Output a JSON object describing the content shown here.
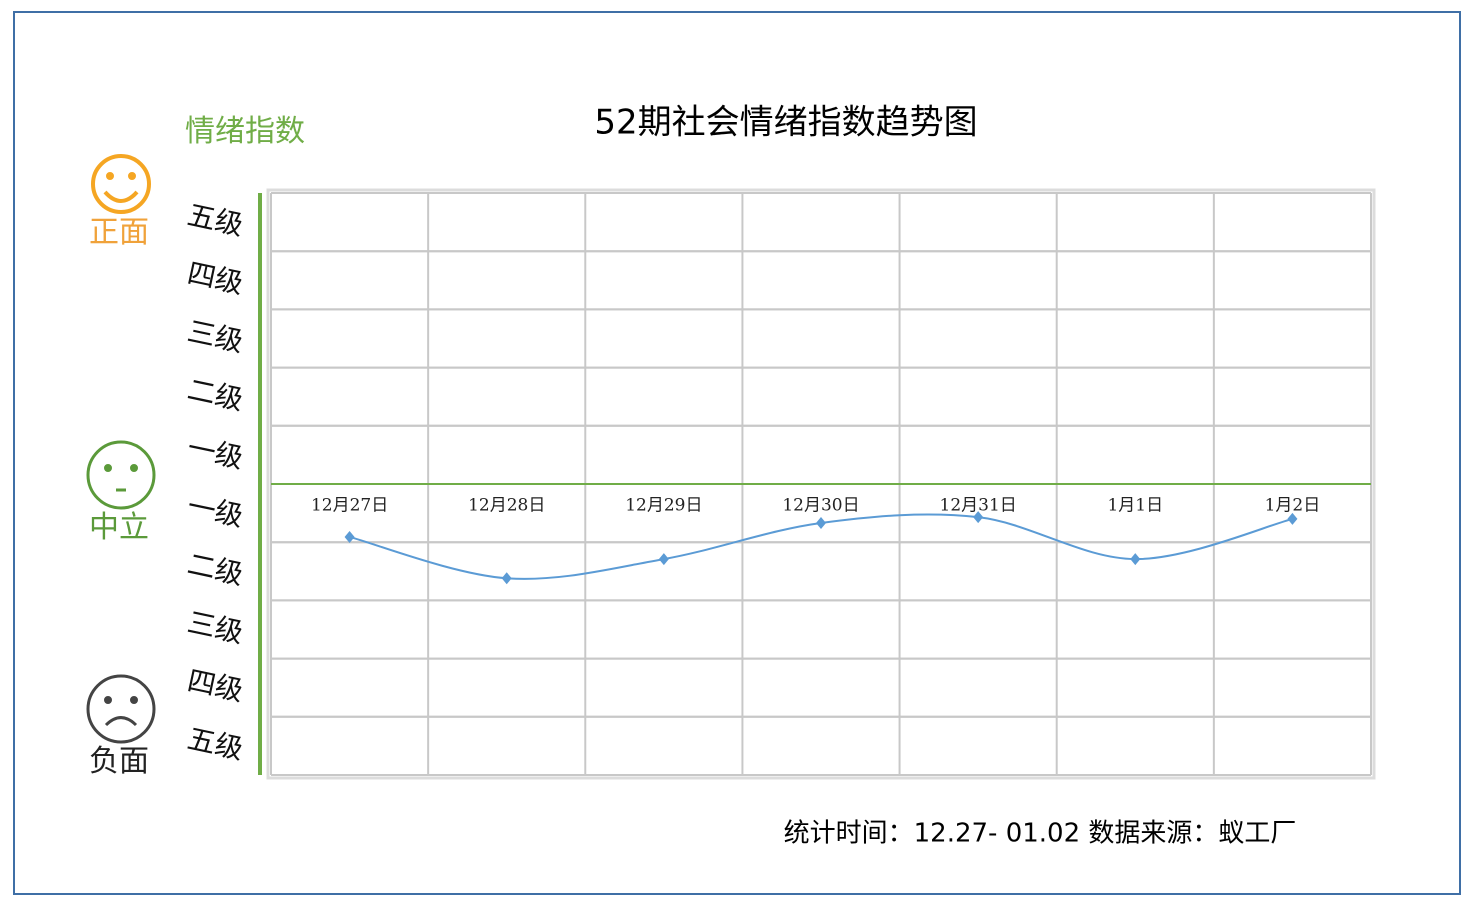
{
  "chart_data": {
    "type": "line",
    "title": "52期社会情绪指数趋势图",
    "y_label": "情绪指数",
    "groups": [
      "正面",
      "中立",
      "负面"
    ],
    "categories": [
      "12月27日",
      "12月28日",
      "12月29日",
      "12月30日",
      "12月31日",
      "1月1日",
      "1月2日"
    ],
    "values": [
      -0.91,
      -1.62,
      -1.29,
      -0.67,
      -0.57,
      -1.29,
      -0.6
    ],
    "color": "#5b9bd5",
    "axis_color": "#70ad47",
    "ylim": [
      -5,
      5
    ],
    "yticks": [
      {
        "value": 4.5,
        "label": "五级"
      },
      {
        "value": 3.5,
        "label": "四级"
      },
      {
        "value": 2.5,
        "label": "三级"
      },
      {
        "value": 1.5,
        "label": "二级"
      },
      {
        "value": 0.5,
        "label": "一级"
      },
      {
        "value": -0.5,
        "label": "一级"
      },
      {
        "value": -1.5,
        "label": "二级"
      },
      {
        "value": -2.5,
        "label": "三级"
      },
      {
        "value": -3.5,
        "label": "四级"
      },
      {
        "value": -4.5,
        "label": "五级"
      }
    ],
    "grid": true,
    "footer": "统计时间：12.27- 01.02 数据来源：蚁工厂"
  }
}
